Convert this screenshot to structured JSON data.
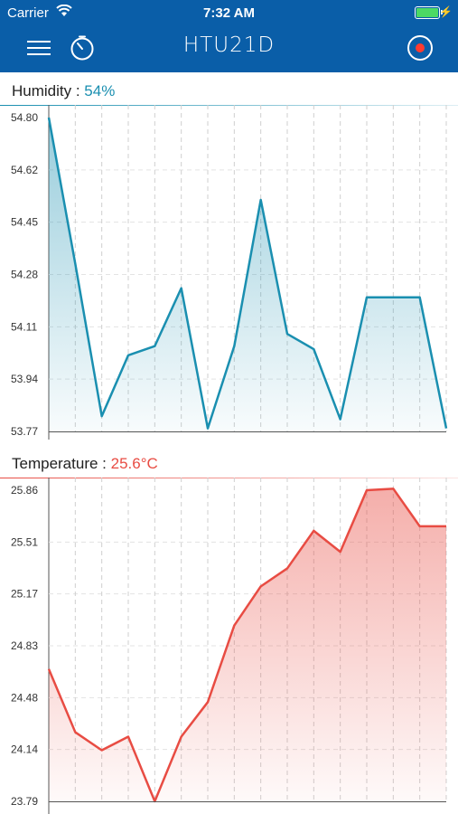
{
  "status_bar": {
    "carrier": "Carrier",
    "time": "7:32 AM",
    "icons": [
      "wifi-icon",
      "battery-icon",
      "charging-bolt-icon"
    ]
  },
  "nav": {
    "title": "HTU21D",
    "icons": [
      "menu-icon",
      "timer-icon",
      "record-icon"
    ],
    "record_color": "#ff3b30"
  },
  "humidity": {
    "label": "Humidity : ",
    "value": "54%",
    "color": "#1a8fb0"
  },
  "temperature": {
    "label": "Temperature : ",
    "value": "25.6°C",
    "color": "#e84c43"
  },
  "chart_data": [
    {
      "type": "area",
      "title": "",
      "xlabel": "",
      "ylabel": "",
      "ylim": [
        53.77,
        54.8
      ],
      "yticks": [
        "54.80",
        "54.62",
        "54.45",
        "54.28",
        "54.11",
        "53.94",
        "53.77"
      ],
      "x": [
        1,
        2,
        3,
        4,
        5,
        6,
        7,
        8,
        9,
        10,
        11,
        12,
        13,
        14,
        15,
        16
      ],
      "series": [
        {
          "values": [
            54.8,
            54.32,
            53.82,
            54.02,
            54.05,
            54.24,
            53.78,
            54.05,
            54.53,
            54.09,
            54.04,
            53.81,
            54.21,
            54.21,
            54.21,
            53.78
          ],
          "color": "#1a8fb0"
        }
      ],
      "grid": true
    },
    {
      "type": "area",
      "title": "",
      "xlabel": "",
      "ylabel": "",
      "ylim": [
        23.79,
        25.86
      ],
      "yticks": [
        "25.86",
        "25.51",
        "25.17",
        "24.83",
        "24.48",
        "24.14",
        "23.79"
      ],
      "x": [
        1,
        2,
        3,
        4,
        5,
        6,
        7,
        8,
        9,
        10,
        11,
        12,
        13,
        14,
        15,
        16
      ],
      "series": [
        {
          "values": [
            24.67,
            24.25,
            24.13,
            24.22,
            23.79,
            24.22,
            24.45,
            24.96,
            25.22,
            25.34,
            25.59,
            25.45,
            25.86,
            25.87,
            25.62,
            25.62
          ],
          "color": "#e84c43"
        }
      ],
      "grid": true
    }
  ]
}
